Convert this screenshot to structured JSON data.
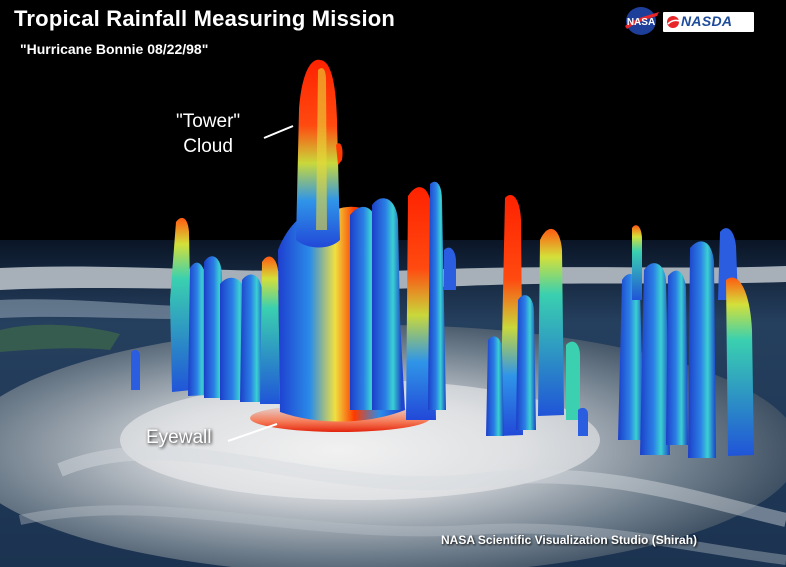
{
  "title": "Tropical Rainfall Measuring Mission",
  "subtitle": "\"Hurricane Bonnie 08/22/98\"",
  "annotations": {
    "tower_line1": "\"Tower\"",
    "tower_line2": "Cloud",
    "eyewall": "Eyewall"
  },
  "credit": "NASA Scientific Visualization Studio (Shirah)",
  "logos": {
    "nasa": "NASA",
    "nasda": "NASDA"
  },
  "colors": {
    "background": "#000000",
    "rain_low": "#1f4fd8",
    "rain_mid": "#3ad6c0",
    "rain_high": "#ff2a00",
    "cloud": "#e8e8e8",
    "ocean": "#1d3b5c"
  }
}
